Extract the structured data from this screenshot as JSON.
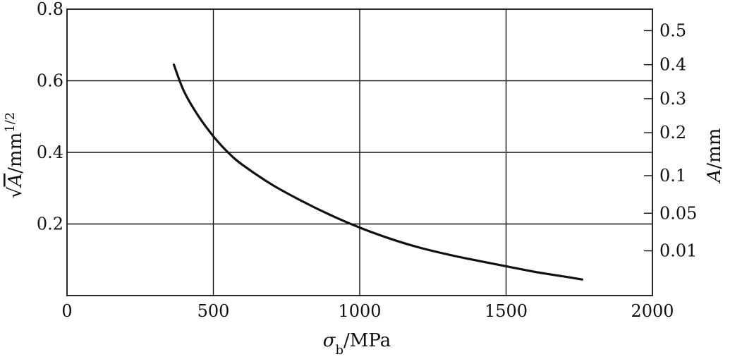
{
  "chart_data": {
    "type": "line",
    "title": "",
    "xlabel": {
      "symbol": "σ",
      "subscript": "b",
      "unit": "/MPa"
    },
    "ylabel": {
      "root": "√",
      "symbol": "A",
      "unit": "/mm",
      "exponent": "1/2"
    },
    "y2label": {
      "symbol": "A",
      "unit": "/mm"
    },
    "xlim": [
      0,
      2000
    ],
    "ylim": [
      0,
      0.8
    ],
    "grid": true,
    "x_ticks": [
      "0",
      "500",
      "1000",
      "1500",
      "2000"
    ],
    "x_tick_values": [
      0,
      500,
      1000,
      1500,
      2000
    ],
    "y_ticks": [
      "0.2",
      "0.4",
      "0.6",
      "0.8"
    ],
    "y_tick_values": [
      0.2,
      0.4,
      0.6,
      0.8
    ],
    "y2_ticks": [
      "0.5",
      "0.4",
      "0.3",
      "0.2",
      "0.1",
      "0.05",
      "0.01"
    ],
    "y2_tick_positions": [
      0.74,
      0.645,
      0.55,
      0.455,
      0.335,
      0.23,
      0.125
    ],
    "series": [
      {
        "x": [
          365,
          400,
          450,
          500,
          550,
          600,
          700,
          800,
          900,
          1000,
          1100,
          1200,
          1300,
          1400,
          1500,
          1600,
          1700,
          1760
        ],
        "y": [
          0.645,
          0.57,
          0.5,
          0.445,
          0.4,
          0.365,
          0.31,
          0.265,
          0.225,
          0.19,
          0.16,
          0.135,
          0.115,
          0.098,
          0.082,
          0.066,
          0.053,
          0.045
        ]
      }
    ]
  }
}
